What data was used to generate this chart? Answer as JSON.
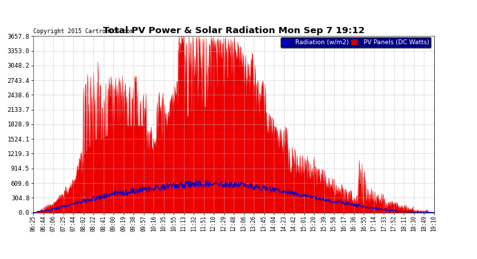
{
  "title": "Total PV Power & Solar Radiation Mon Sep 7 19:12",
  "copyright": "Copyright 2015 Cartronics.com",
  "background_color": "#ffffff",
  "plot_bg_color": "#ffffff",
  "grid_color": "#bbbbbb",
  "pv_color": "#ee0000",
  "radiation_color": "#0000cc",
  "ylim": [
    0,
    3657.8
  ],
  "yticks": [
    0.0,
    304.8,
    609.6,
    914.5,
    1219.3,
    1524.1,
    1828.9,
    2133.7,
    2438.6,
    2743.4,
    3048.2,
    3353.0,
    3657.8
  ],
  "legend_radiation_label": "Radiation (w/m2)",
  "legend_pv_label": "PV Panels (DC Watts)",
  "legend_radiation_bg": "#0000cc",
  "legend_pv_bg": "#cc0000",
  "xtick_labels": [
    "06:25",
    "06:44",
    "07:06",
    "07:25",
    "07:44",
    "08:02",
    "08:22",
    "08:41",
    "09:00",
    "09:19",
    "09:38",
    "09:57",
    "10:16",
    "10:35",
    "10:55",
    "11:13",
    "11:32",
    "11:51",
    "12:10",
    "12:29",
    "12:48",
    "13:06",
    "13:26",
    "13:45",
    "14:04",
    "14:23",
    "14:42",
    "15:01",
    "15:20",
    "15:39",
    "15:58",
    "16:17",
    "16:36",
    "16:55",
    "17:14",
    "17:33",
    "17:52",
    "18:11",
    "18:30",
    "18:49",
    "19:10"
  ],
  "num_points": 820
}
